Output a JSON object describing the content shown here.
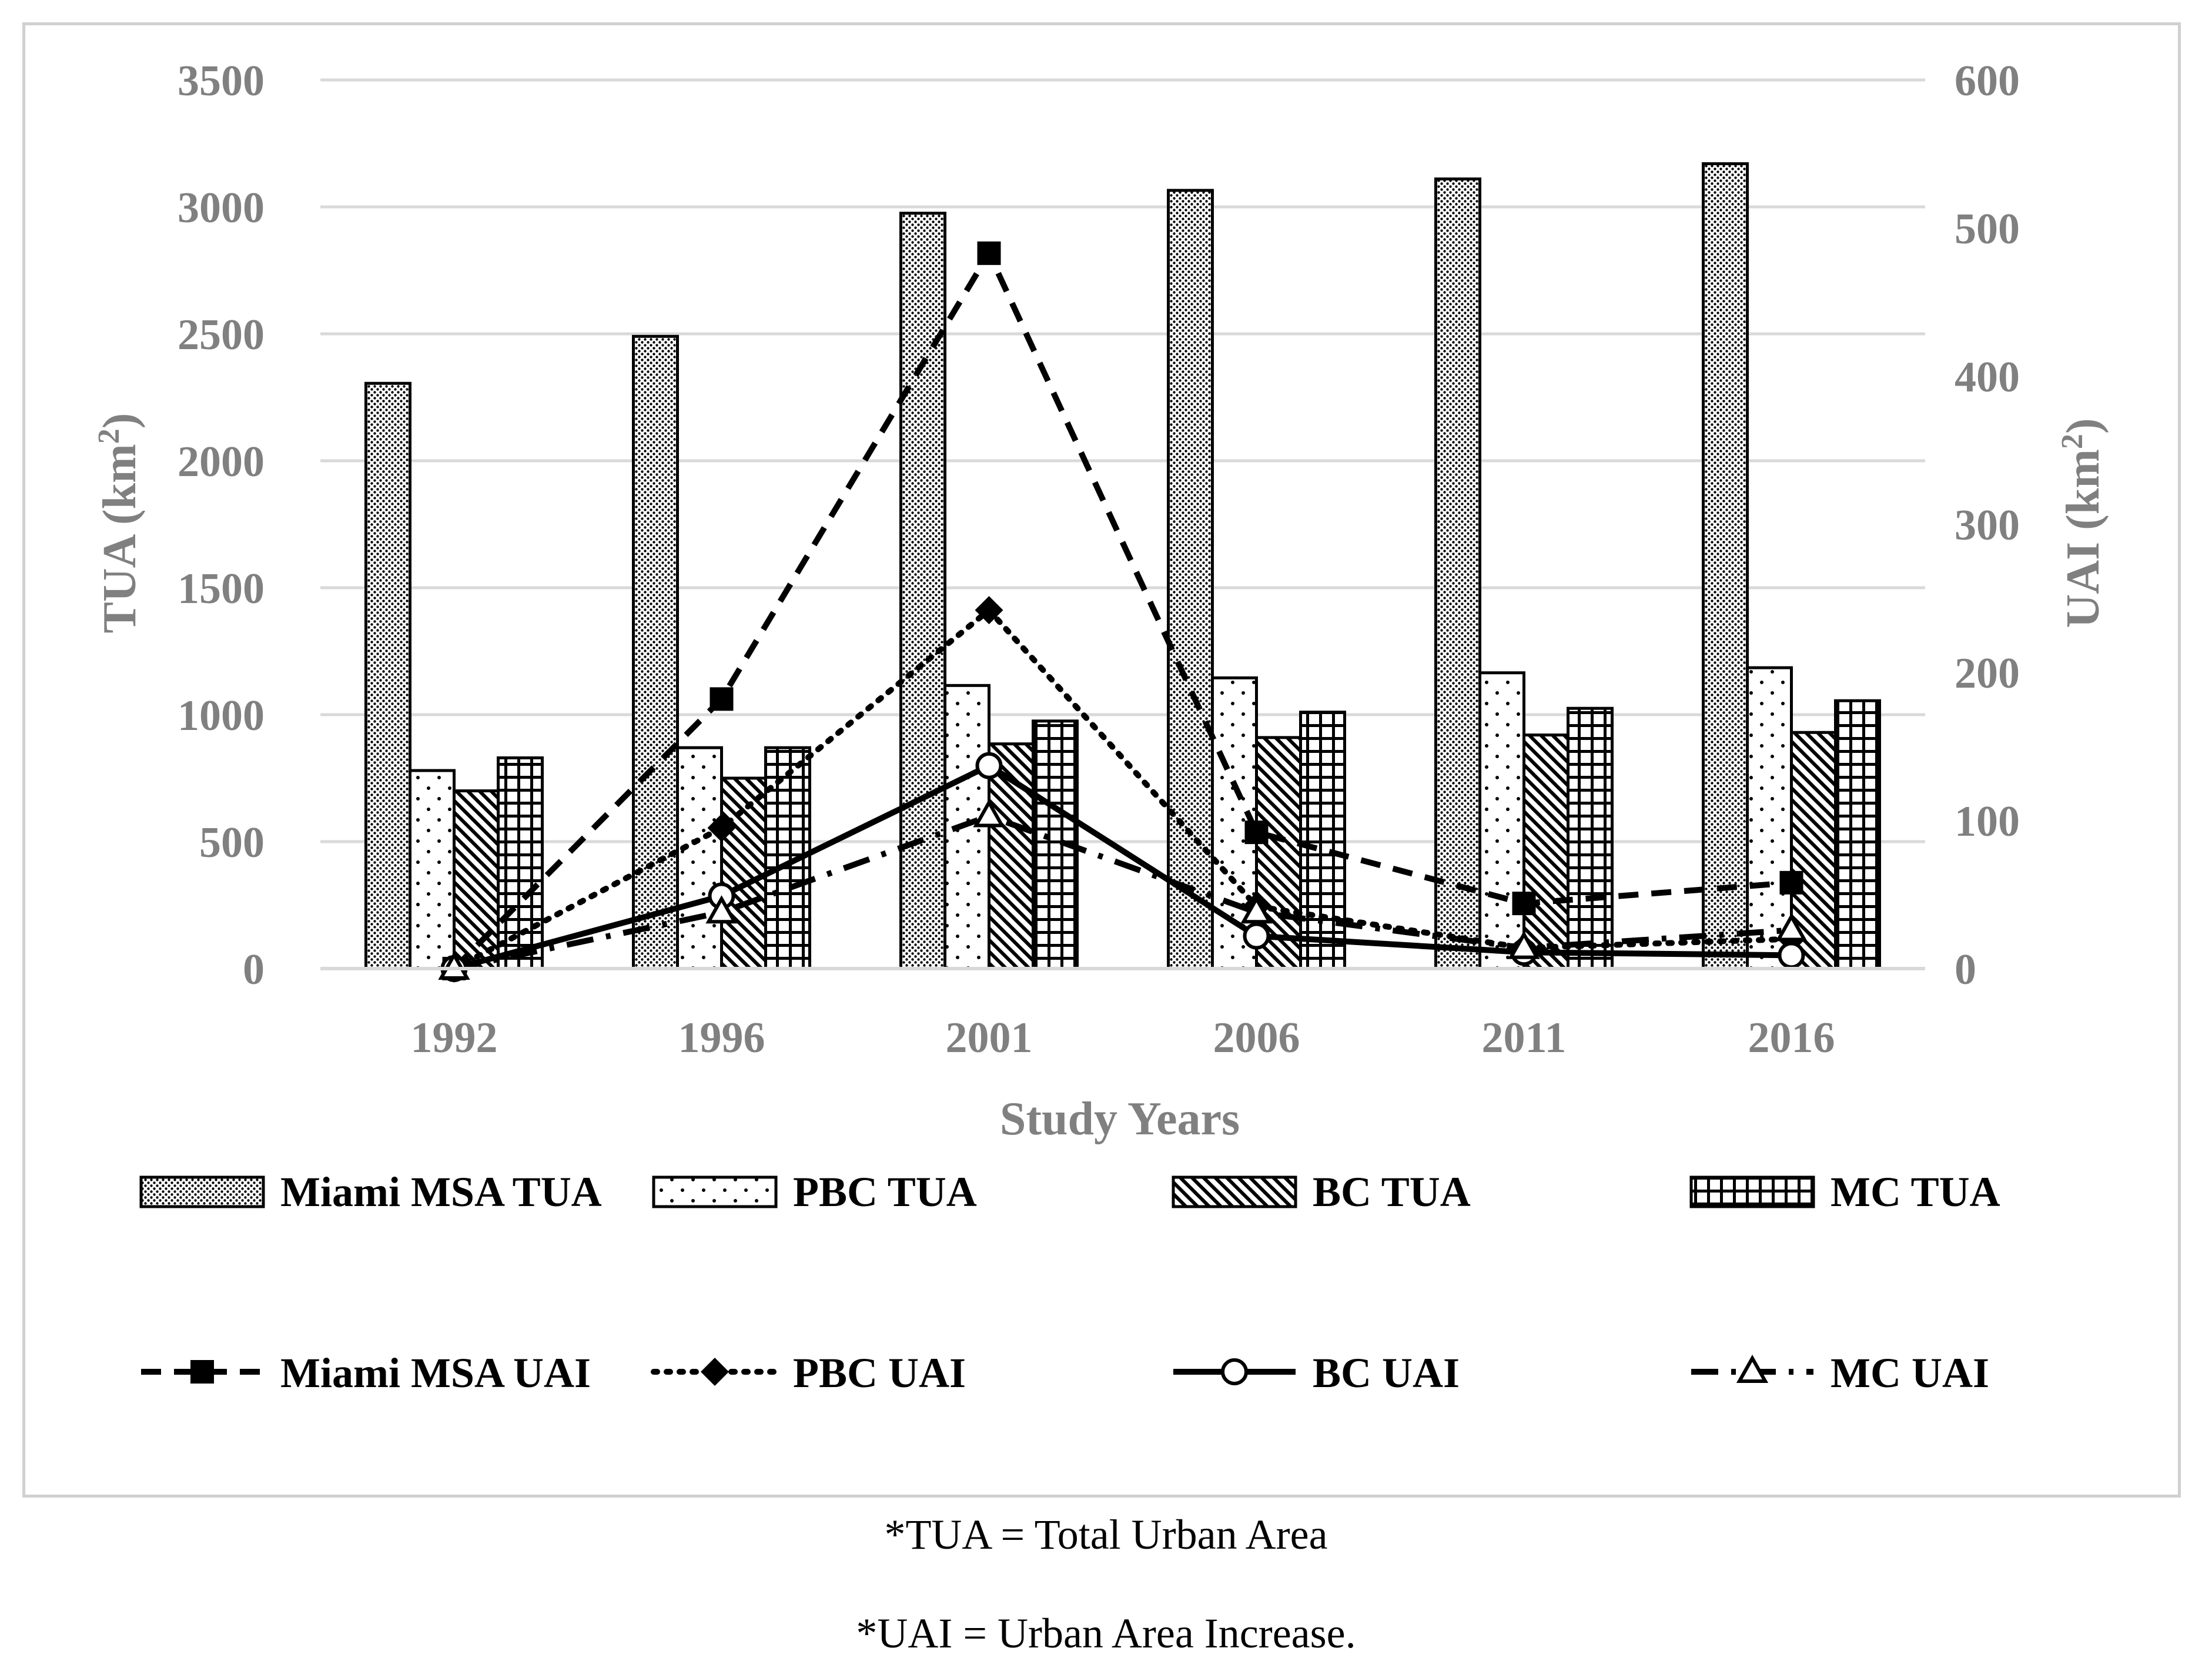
{
  "chart_data": {
    "type": "bar",
    "title": "",
    "xlabel": "Study Years",
    "ylabel": "TUA (km2)",
    "ylabel_right": "UAI (km2)",
    "ylim": [
      0,
      3500
    ],
    "ylim_right": [
      0,
      600
    ],
    "yticks": [
      "0",
      "500",
      "1000",
      "1500",
      "2000",
      "2500",
      "3000",
      "3500"
    ],
    "yticks_right": [
      "0",
      "100",
      "200",
      "300",
      "400",
      "500",
      "600"
    ],
    "categories": [
      "1992",
      "1996",
      "2001",
      "2006",
      "2011",
      "2016"
    ],
    "bar_series": [
      {
        "name": "Miami MSA TUA",
        "pattern": "dots",
        "values": [
          2305,
          2490,
          2975,
          3065,
          3110,
          3170
        ]
      },
      {
        "name": "PBC TUA",
        "pattern": "sparse-dots",
        "values": [
          780,
          870,
          1115,
          1145,
          1165,
          1185
        ]
      },
      {
        "name": "BC TUA",
        "pattern": "diagonal",
        "values": [
          700,
          750,
          885,
          910,
          920,
          930
        ]
      },
      {
        "name": "MC TUA",
        "pattern": "grid",
        "values": [
          830,
          870,
          975,
          1010,
          1025,
          1055
        ]
      }
    ],
    "line_series": [
      {
        "name": "Miami MSA UAI",
        "style": "dash",
        "marker": "square",
        "values": [
          0,
          182,
          483,
          92,
          44,
          58
        ]
      },
      {
        "name": "PBC UAI",
        "style": "dot",
        "marker": "diamond",
        "values": [
          0,
          95,
          242,
          42,
          14,
          20
        ]
      },
      {
        "name": "BC UAI",
        "style": "solid",
        "marker": "circle",
        "values": [
          0,
          49,
          137,
          22,
          11,
          9
        ]
      },
      {
        "name": "MC UAI",
        "style": "dashdot",
        "marker": "triangle",
        "values": [
          0,
          38,
          103,
          38,
          14,
          26
        ]
      }
    ],
    "legend_position": "bottom"
  },
  "footnotes": {
    "tua": "*TUA = Total Urban Area",
    "uai": "*UAI = Urban Area Increase."
  },
  "colors": {
    "axis_text": "#808080",
    "gridline": "#d9d9d9",
    "ink": "#000000",
    "frame": "#d0d0d0"
  }
}
